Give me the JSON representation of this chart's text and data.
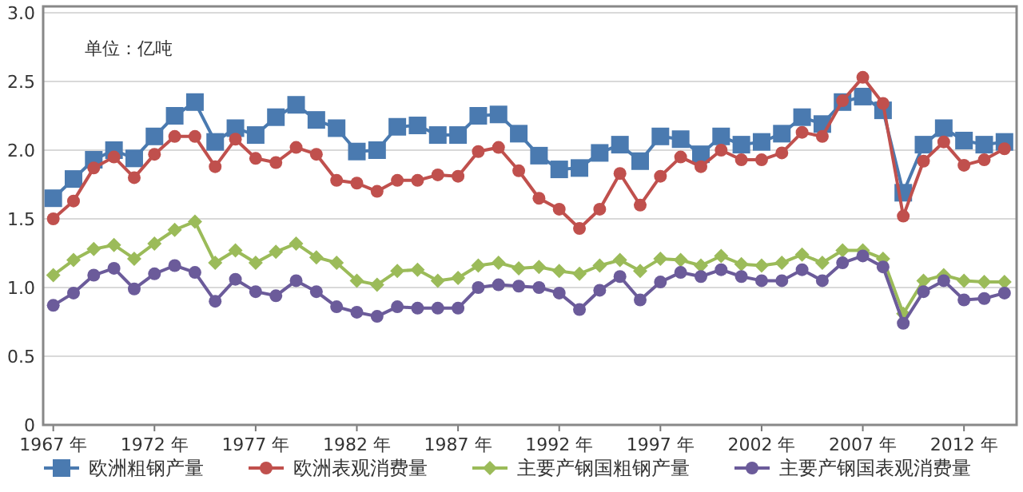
{
  "chart_data": {
    "type": "line",
    "annotations": [
      "单位：亿吨"
    ],
    "x": [
      1967,
      1968,
      1969,
      1970,
      1971,
      1972,
      1973,
      1974,
      1975,
      1976,
      1977,
      1978,
      1979,
      1980,
      1981,
      1982,
      1983,
      1984,
      1985,
      1986,
      1987,
      1988,
      1989,
      1990,
      1991,
      1992,
      1993,
      1994,
      1995,
      1996,
      1997,
      1998,
      1999,
      2000,
      2001,
      2002,
      2003,
      2004,
      2005,
      2006,
      2007,
      2008,
      2009,
      2010,
      2011,
      2012,
      2013,
      2014
    ],
    "xlim": [
      1966.5,
      2014.6
    ],
    "xticks": [
      {
        "value": 1967,
        "label": "1967 年"
      },
      {
        "value": 1972,
        "label": "1972 年"
      },
      {
        "value": 1977,
        "label": "1977 年"
      },
      {
        "value": 1982,
        "label": "1982 年"
      },
      {
        "value": 1987,
        "label": "1987 年"
      },
      {
        "value": 1992,
        "label": "1992 年"
      },
      {
        "value": 1997,
        "label": "1997 年"
      },
      {
        "value": 2002,
        "label": "2002 年"
      },
      {
        "value": 2007,
        "label": "2007 年"
      },
      {
        "value": 2012,
        "label": "2012 年"
      }
    ],
    "ylim": [
      0,
      3
    ],
    "yticks": [
      0,
      0.5,
      {
        "value": 1,
        "label": "1.0"
      },
      1.5,
      {
        "value": 2,
        "label": "2.0"
      },
      2.5,
      {
        "value": 3,
        "label": "3.0"
      }
    ],
    "grid": "y",
    "legend": "bottom",
    "series": [
      {
        "name": "欧洲粗钢产量",
        "color": "#4a7ab0",
        "marker": "square",
        "values": [
          1.65,
          1.79,
          1.93,
          2.0,
          1.94,
          2.1,
          2.25,
          2.35,
          2.06,
          2.16,
          2.11,
          2.24,
          2.33,
          2.22,
          2.16,
          1.99,
          2.0,
          2.17,
          2.18,
          2.11,
          2.11,
          2.25,
          2.26,
          2.12,
          1.96,
          1.86,
          1.87,
          1.98,
          2.04,
          1.92,
          2.1,
          2.08,
          1.97,
          2.1,
          2.04,
          2.06,
          2.12,
          2.24,
          2.19,
          2.35,
          2.39,
          2.29,
          1.69,
          2.04,
          2.16,
          2.07,
          2.04,
          2.06
        ]
      },
      {
        "name": "欧洲表观消费量",
        "color": "#c0504d",
        "marker": "circle",
        "values": [
          1.5,
          1.63,
          1.87,
          1.95,
          1.8,
          1.97,
          2.1,
          2.1,
          1.88,
          2.08,
          1.94,
          1.91,
          2.02,
          1.97,
          1.78,
          1.76,
          1.7,
          1.78,
          1.78,
          1.82,
          1.81,
          1.99,
          2.02,
          1.85,
          1.65,
          1.57,
          1.43,
          1.57,
          1.83,
          1.6,
          1.81,
          1.95,
          1.88,
          2.0,
          1.93,
          1.93,
          1.98,
          2.13,
          2.1,
          2.36,
          2.53,
          2.34,
          1.52,
          1.92,
          2.06,
          1.89,
          1.93,
          2.01
        ]
      },
      {
        "name": "主要产钢国粗钢产量",
        "color": "#9bbb59",
        "marker": "diamond",
        "values": [
          1.09,
          1.2,
          1.28,
          1.31,
          1.21,
          1.32,
          1.42,
          1.48,
          1.18,
          1.27,
          1.18,
          1.26,
          1.32,
          1.22,
          1.18,
          1.05,
          1.02,
          1.12,
          1.13,
          1.05,
          1.07,
          1.16,
          1.18,
          1.14,
          1.15,
          1.12,
          1.1,
          1.16,
          1.2,
          1.12,
          1.21,
          1.2,
          1.16,
          1.23,
          1.17,
          1.16,
          1.18,
          1.24,
          1.18,
          1.27,
          1.27,
          1.21,
          0.81,
          1.05,
          1.09,
          1.05,
          1.04,
          1.04
        ]
      },
      {
        "name": "主要产钢国表观消费量",
        "color": "#6b5b9a",
        "marker": "circle",
        "values": [
          0.87,
          0.96,
          1.09,
          1.14,
          0.99,
          1.1,
          1.16,
          1.11,
          0.9,
          1.06,
          0.97,
          0.94,
          1.05,
          0.97,
          0.86,
          0.82,
          0.79,
          0.86,
          0.85,
          0.85,
          0.85,
          1.0,
          1.02,
          1.01,
          1.0,
          0.96,
          0.84,
          0.98,
          1.08,
          0.91,
          1.04,
          1.11,
          1.08,
          1.13,
          1.08,
          1.05,
          1.05,
          1.13,
          1.05,
          1.18,
          1.23,
          1.15,
          0.74,
          0.97,
          1.05,
          0.91,
          0.92,
          0.96
        ]
      }
    ]
  }
}
